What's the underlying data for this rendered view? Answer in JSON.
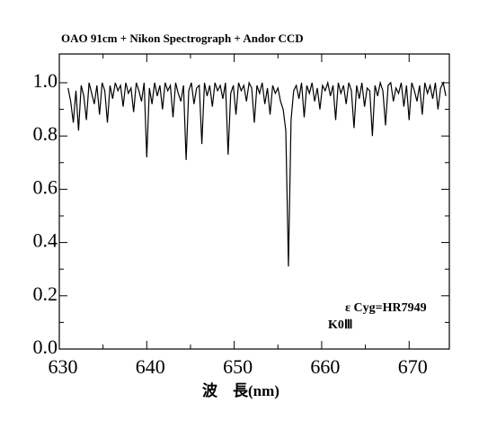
{
  "chart_data": {
    "type": "line",
    "title": "OAO 91cm + Nikon Spectrograph + Andor CCD",
    "x_label": "波　長(nm)",
    "annotations": [
      "ε Cyg=HR7949",
      "K0Ⅲ"
    ],
    "color": "#000000",
    "xlim": [
      630,
      674.6
    ],
    "ylim": [
      0,
      1.108
    ],
    "xticks": [
      630,
      640,
      650,
      660,
      670
    ],
    "xticks_minor": [
      635,
      645,
      655,
      665
    ],
    "yticks": [
      {
        "value": 0,
        "label": "0.0"
      },
      {
        "value": 0.2,
        "label": "0.2"
      },
      {
        "value": 0.4,
        "label": "0.4"
      },
      {
        "value": 0.6,
        "label": "0.6"
      },
      {
        "value": 0.8,
        "label": "0.8"
      },
      {
        "value": 1,
        "label": "1.0"
      }
    ],
    "yticks_minor": [
      0.1,
      0.3,
      0.5,
      0.7,
      0.9
    ],
    "grid": false,
    "x": [
      631,
      631.3,
      631.6,
      631.9,
      632.2,
      632.5,
      632.8,
      633.1,
      633.4,
      633.7,
      634,
      634.3,
      634.6,
      634.9,
      635.2,
      635.5,
      635.8,
      636.1,
      636.4,
      636.7,
      637,
      637.3,
      637.6,
      637.9,
      638.2,
      638.5,
      638.8,
      639.1,
      639.4,
      639.7,
      640,
      640.3,
      640.6,
      640.9,
      641.2,
      641.5,
      641.8,
      642.1,
      642.4,
      642.7,
      643,
      643.3,
      643.6,
      643.9,
      644.2,
      644.5,
      644.8,
      645.1,
      645.4,
      645.7,
      646,
      646.3,
      646.6,
      646.9,
      647.2,
      647.5,
      647.8,
      648.1,
      648.4,
      648.7,
      649,
      649.3,
      649.6,
      649.9,
      650.2,
      650.5,
      650.8,
      651.1,
      651.4,
      651.7,
      652,
      652.3,
      652.6,
      652.9,
      653.2,
      653.5,
      653.8,
      654.1,
      654.4,
      654.7,
      655,
      655.3,
      655.6,
      655.9,
      656.2,
      656.5,
      656.8,
      657.1,
      657.4,
      657.7,
      658,
      658.3,
      658.6,
      658.9,
      659.2,
      659.5,
      659.8,
      660.1,
      660.4,
      660.7,
      661,
      661.3,
      661.6,
      661.9,
      662.2,
      662.5,
      662.8,
      663.1,
      663.4,
      663.7,
      664,
      664.3,
      664.6,
      664.9,
      665.2,
      665.5,
      665.8,
      666.1,
      666.4,
      666.7,
      667,
      667.3,
      667.6,
      667.9,
      668.2,
      668.5,
      668.8,
      669.1,
      669.4,
      669.7,
      670,
      670.3,
      670.6,
      670.9,
      671.2,
      671.5,
      671.8,
      672.1,
      672.4,
      672.7,
      673,
      673.3,
      673.6,
      673.9,
      674.2
    ],
    "values": [
      0.98,
      0.93,
      0.85,
      0.97,
      0.82,
      0.99,
      0.95,
      0.86,
      1.0,
      0.96,
      0.92,
      0.99,
      0.88,
      1.0,
      0.97,
      0.85,
      0.99,
      0.94,
      1.0,
      0.97,
      0.99,
      0.91,
      1.0,
      0.96,
      0.98,
      0.89,
      1.0,
      0.97,
      0.93,
      1.0,
      0.72,
      0.98,
      0.92,
      1.0,
      0.95,
      0.99,
      0.9,
      1.0,
      0.97,
      0.99,
      0.87,
      1.0,
      0.96,
      0.93,
      0.99,
      0.71,
      0.97,
      1.0,
      0.92,
      0.98,
      0.99,
      0.77,
      1.0,
      0.95,
      0.99,
      0.91,
      1.0,
      0.97,
      0.99,
      0.94,
      1.0,
      0.73,
      0.96,
      0.99,
      0.88,
      1.0,
      0.97,
      0.99,
      0.93,
      1.0,
      0.98,
      0.85,
      0.99,
      0.96,
      1.0,
      0.92,
      0.98,
      0.88,
      0.99,
      0.96,
      0.98,
      0.93,
      0.9,
      0.82,
      0.31,
      0.86,
      0.97,
      0.99,
      0.94,
      1.0,
      0.87,
      0.99,
      0.96,
      1.0,
      0.93,
      0.98,
      0.9,
      0.99,
      0.97,
      1.0,
      0.95,
      0.99,
      0.86,
      1.0,
      0.96,
      0.99,
      0.92,
      1.0,
      0.97,
      0.83,
      0.99,
      0.94,
      1.0,
      0.91,
      0.98,
      0.97,
      0.8,
      0.99,
      0.95,
      1.0,
      0.97,
      0.84,
      0.99,
      1.0,
      0.93,
      0.98,
      0.96,
      1.0,
      0.91,
      0.99,
      0.86,
      1.0,
      0.97,
      0.93,
      0.99,
      0.88,
      1.0,
      0.96,
      0.99,
      0.94,
      1.0,
      0.9,
      0.98,
      1.0,
      0.95
    ]
  }
}
